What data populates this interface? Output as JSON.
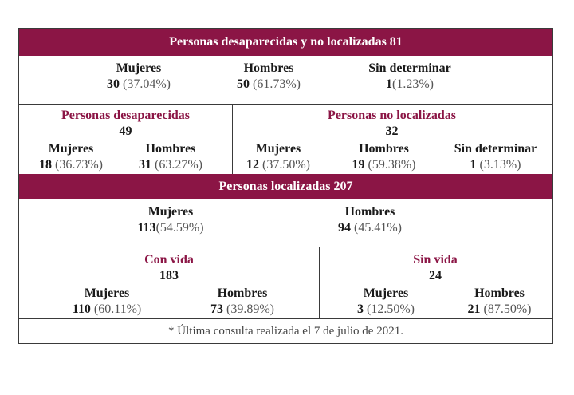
{
  "header_total": "Personas desaparecidas y no localizadas 81",
  "total_breakdown": [
    {
      "label": "Mujeres",
      "num": "30",
      "pct": "(37.04%)"
    },
    {
      "label": "Hombres",
      "num": "50",
      "pct": "(61.73%)"
    },
    {
      "label": "Sin determinar",
      "num": "1",
      "pct": "(1.23%)"
    }
  ],
  "desaparecidas": {
    "title": "Personas desaparecidas",
    "total": "49",
    "items": [
      {
        "label": "Mujeres",
        "num": "18",
        "pct": "(36.73%)"
      },
      {
        "label": "Hombres",
        "num": "31",
        "pct": "(63.27%)"
      }
    ]
  },
  "no_localizadas": {
    "title": "Personas no localizadas",
    "total": "32",
    "items": [
      {
        "label": "Mujeres",
        "num": "12",
        "pct": "(37.50%)"
      },
      {
        "label": "Hombres",
        "num": "19",
        "pct": "(59.38%)"
      },
      {
        "label": "Sin determinar",
        "num": "1",
        "pct": "(3.13%)"
      }
    ]
  },
  "header_localizadas": "Personas localizadas 207",
  "localizadas_breakdown": [
    {
      "label": "Mujeres",
      "num": "113",
      "pct": "(54.59%)"
    },
    {
      "label": "Hombres",
      "num": "94",
      "pct": "(45.41%)"
    }
  ],
  "con_vida": {
    "title": "Con vida",
    "total": "183",
    "items": [
      {
        "label": "Mujeres",
        "num": "110",
        "pct": "(60.11%)"
      },
      {
        "label": "Hombres",
        "num": "73",
        "pct": "(39.89%)"
      }
    ]
  },
  "sin_vida": {
    "title": "Sin vida",
    "total": "24",
    "items": [
      {
        "label": "Mujeres",
        "num": "3",
        "pct": "(12.50%)"
      },
      {
        "label": "Hombres",
        "num": "21",
        "pct": "(87.50%)"
      }
    ]
  },
  "footnote": "* Última consulta realizada el 7 de julio de 2021.",
  "colors": {
    "band": "#8b1545",
    "accent_text": "#8b1545",
    "border": "#3a3a3a"
  }
}
